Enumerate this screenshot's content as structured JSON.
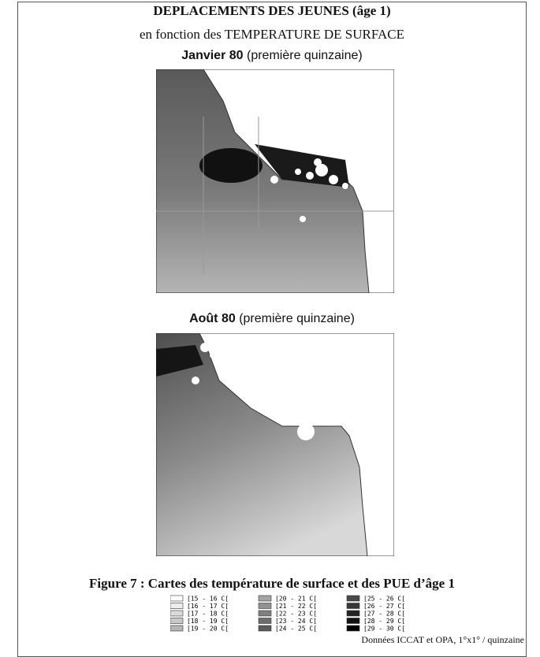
{
  "header": {
    "title": "DEPLACEMENTS DES JEUNES (âge 1)",
    "subtitle": "en fonction des TEMPERATURE DE SURFACE"
  },
  "maps": [
    {
      "title_bold": "Janvier 80",
      "title_rest": "(première quinzaine)"
    },
    {
      "title_bold": "Août 80",
      "title_rest": "(première quinzaine)"
    }
  ],
  "caption": "Figure 7 : Cartes des température de surface et des PUE d’âge 1",
  "legend": [
    "[15 - 16 C[",
    "[16 - 17 C[",
    "[17 - 18 C[",
    "[18 - 19 C[",
    "[19 - 20 C[",
    "[20 - 21 C[",
    "[21 - 22 C[",
    "[22 - 23 C[",
    "[23 - 24 C[",
    "[24 - 25 C[",
    "[25 - 26 C[",
    "[26 - 27 C[",
    "[27 - 28 C[",
    "[28 - 29 C[",
    "[29 - 30 C["
  ],
  "footer": "Données ICCAT et OPA, 1°x1° / quinzaine"
}
